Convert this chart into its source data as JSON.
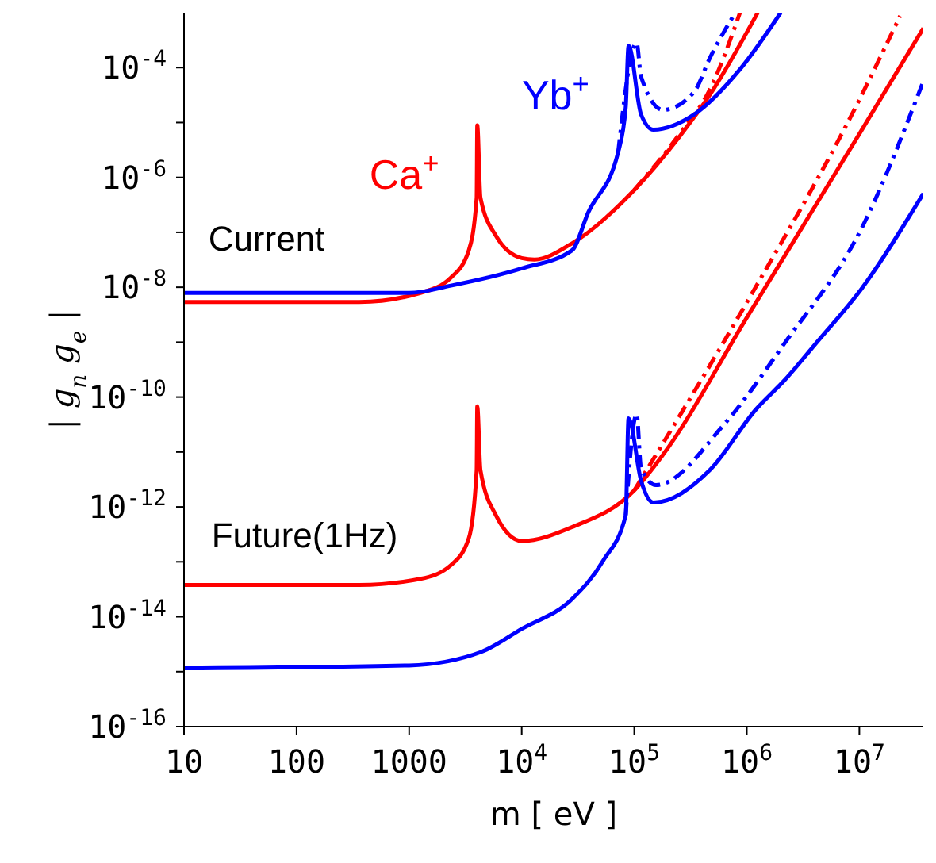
{
  "chart_data": {
    "type": "line",
    "xlabel": "m [ eV ]",
    "ylabel": "| g$_{n}$ g$_{e}$ |",
    "log": "xy",
    "marker": "none",
    "xlim": [
      10,
      37000000
    ],
    "ylim": [
      1e-16,
      0.001
    ],
    "xticks": [
      10,
      100,
      1000,
      {
        "value": 10000,
        "label": "10$^{4}$"
      },
      {
        "value": 100000,
        "label": "10$^{5}$"
      },
      {
        "value": 1000000,
        "label": "10$^{6}$"
      },
      {
        "value": 10000000,
        "label": "10$^{7}$"
      }
    ],
    "yticks": [
      {
        "value": 1e-16,
        "label": "10$^{-16}$"
      },
      {
        "value": 1e-15,
        "label": null
      },
      {
        "value": 1e-14,
        "label": "10$^{-14}$"
      },
      {
        "value": 1e-13,
        "label": null
      },
      {
        "value": 1e-12,
        "label": "10$^{-12}$"
      },
      {
        "value": 1e-11,
        "label": null
      },
      {
        "value": 1e-10,
        "label": "10$^{-10}$"
      },
      {
        "value": 1e-09,
        "label": null
      },
      {
        "value": 1e-08,
        "label": "10$^{-8}$"
      },
      {
        "value": 1e-07,
        "label": null
      },
      {
        "value": 1e-06,
        "label": "10$^{-6}$"
      },
      {
        "value": 1e-05,
        "label": null
      },
      {
        "value": 0.0001,
        "label": "10$^{-4}$"
      }
    ],
    "annotations": [
      "Current",
      "Future(1Hz)"
    ],
    "series": [
      {
        "name": "Ca$^{+}$",
        "color": "#ff0000",
        "line_style": "solid",
        "x": [
          10,
          360,
          1260,
          2350,
          3390,
          3980,
          4030,
          4300,
          5890,
          10000,
          13000,
          28000,
          100000,
          250000,
          470000,
          1250000
        ],
        "values": [
          5.4e-09,
          5.4e-09,
          7.9e-09,
          1.5e-08,
          4.7e-08,
          4.3e-07,
          8.9e-06,
          4.3e-07,
          8.7e-08,
          3.4e-08,
          3.2e-08,
          6.3e-08,
          5.9e-07,
          5.4e-06,
          3.2e-05,
          0.001
        ]
      },
      {
        "color": "#ff0000",
        "line_style": "dashed",
        "x": [
          100000,
          250000,
          470000,
          870000
        ],
        "values": [
          5.9e-07,
          6e-06,
          4e-05,
          0.001
        ]
      },
      {
        "name": "Yb$^{+}$",
        "color": "#0000ff",
        "line_style": "solid",
        "x": [
          10,
          1000,
          2350,
          10000,
          28000,
          39000,
          72000,
          84000,
          89000,
          115000,
          148000,
          340000,
          870000,
          2000000
        ],
        "values": [
          7.9e-09,
          7.9e-09,
          1.07e-08,
          2.2e-08,
          4.7e-08,
          2.3e-07,
          2.9e-06,
          1.9e-05,
          0.00025,
          1.4e-05,
          7.4e-06,
          1.4e-05,
          9.3e-05,
          0.001
        ]
      },
      {
        "color": "#0000ff",
        "line_style": "dashed",
        "x": [
          72000,
          105000,
          115000,
          180000,
          340000,
          470000,
          790000
        ],
        "values": [
          2.9e-06,
          0.00028,
          6.8e-05,
          1.7e-05,
          3.6e-05,
          0.00015,
          0.001
        ]
      },
      {
        "color": "#ff0000",
        "line_style": "solid",
        "x": [
          10,
          360,
          1260,
          2350,
          3390,
          3980,
          4030,
          4300,
          5890,
          10000,
          28000,
          100000,
          180000,
          1000000,
          10000000,
          37000000
        ],
        "values": [
          3.8e-14,
          3.8e-14,
          4.9e-14,
          8.7e-14,
          2.7e-13,
          4.7e-12,
          6.8e-11,
          4.7e-12,
          7.1e-13,
          2.4e-13,
          4.3e-13,
          2e-12,
          8.9e-12,
          2.8e-09,
          6.2e-06,
          0.00052
        ]
      },
      {
        "color": "#ff0000",
        "line_style": "dashed",
        "x": [
          100000,
          1000000,
          10000000,
          23000000
        ],
        "values": [
          2e-12,
          5.3e-09,
          2.6e-05,
          0.00087
        ]
      },
      {
        "color": "#0000ff",
        "line_style": "solid",
        "x": [
          10,
          1000,
          4400,
          10000,
          28000,
          53000,
          84000,
          89000,
          115000,
          148000,
          470000,
          1200000,
          2200000,
          4200000,
          10500000,
          37000000
        ],
        "values": [
          1.15e-15,
          1.3e-15,
          2.3e-15,
          6e-15,
          2.1e-14,
          1.05e-13,
          7.1e-13,
          4.1e-11,
          3e-12,
          1.2e-12,
          4.7e-12,
          5.9e-11,
          2.1e-10,
          1e-09,
          9.5e-09,
          5.1e-07
        ]
      },
      {
        "color": "#0000ff",
        "line_style": "dashed",
        "x": [
          84000,
          105000,
          115000,
          156000,
          630000,
          2200000,
          10500000,
          37000000
        ],
        "values": [
          7.1e-13,
          4.9e-11,
          5e-12,
          2.5e-12,
          3.2e-11,
          1e-09,
          1.2e-07,
          5.6e-05
        ]
      }
    ]
  }
}
